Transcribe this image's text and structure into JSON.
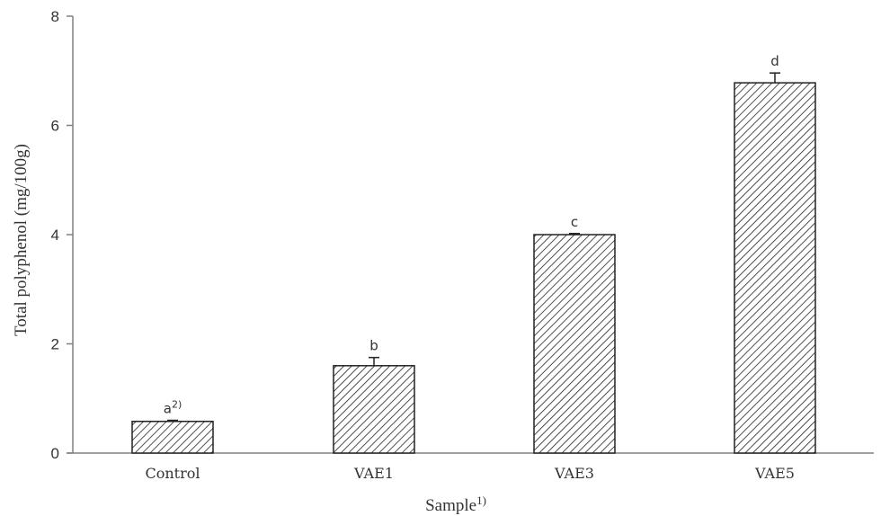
{
  "chart_data": {
    "type": "bar",
    "title": "",
    "xlabel": "Sample",
    "xlabel_superscript": "1)",
    "ylabel": "Total polyphenol (mg/100g)",
    "ylim": [
      0,
      8
    ],
    "yticks": [
      0,
      2,
      4,
      6,
      8
    ],
    "grid": false,
    "legend": null,
    "categories": [
      "Control",
      "VAE1",
      "VAE3",
      "VAE5"
    ],
    "values": [
      0.58,
      1.6,
      4.0,
      6.78
    ],
    "errors": [
      0.02,
      0.15,
      0.02,
      0.18
    ],
    "significance_letters": [
      "a",
      "b",
      "c",
      "d"
    ],
    "significance_superscript": [
      "2)",
      "",
      "",
      ""
    ],
    "bar_fill": "diagonal hatch",
    "colors": {
      "axis": "#808080",
      "bar_edge": "#222222",
      "hatch": "#222222"
    }
  }
}
